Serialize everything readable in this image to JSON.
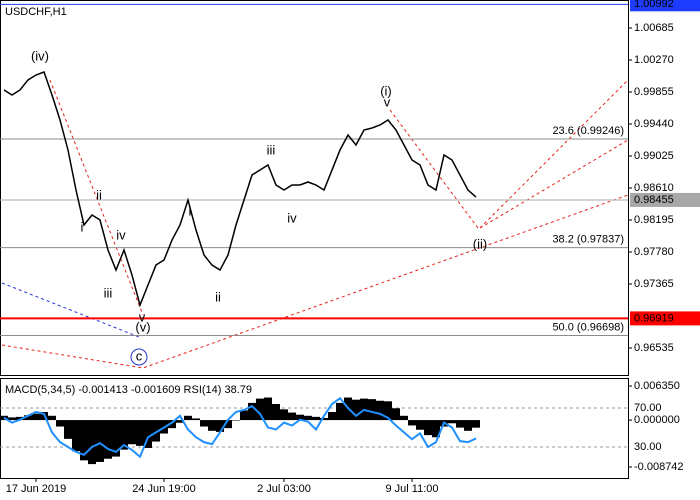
{
  "chart_data": [
    {
      "type": "line",
      "title": "USDCHF,H1",
      "categories": [
        null,
        null,
        null,
        null,
        "17 Jun 2019",
        null,
        null,
        null,
        null,
        null,
        null,
        null,
        null,
        null,
        null,
        null,
        null,
        null,
        null,
        null,
        "24 Jun 19:00",
        null,
        null,
        null,
        null,
        null,
        null,
        null,
        null,
        null,
        null,
        null,
        null,
        null,
        null,
        "2 Jul 03:00",
        null,
        null,
        null,
        null,
        null,
        null,
        null,
        null,
        null,
        null,
        null,
        null,
        null,
        null,
        null,
        "9 Jul 11:00",
        null,
        null,
        null,
        null,
        null,
        null,
        null,
        null
      ],
      "values": [
        0.99881,
        0.99816,
        0.99881,
        1.00011,
        1.00075,
        1.00114,
        0.99816,
        0.99492,
        0.99103,
        0.98584,
        0.9813,
        0.9826,
        0.98195,
        0.97806,
        0.97546,
        0.97806,
        0.97481,
        0.97092,
        0.97352,
        0.97611,
        0.97676,
        0.97935,
        0.9813,
        0.98454,
        0.98065,
        0.97741,
        0.97611,
        0.97546,
        0.97741,
        0.9813,
        0.98454,
        0.98778,
        0.98843,
        0.98908,
        0.98649,
        0.98584,
        0.98649,
        0.98649,
        0.98688,
        0.98649,
        0.98584,
        0.98843,
        0.99103,
        0.99297,
        0.99168,
        0.99362,
        0.99388,
        0.99427,
        0.99492,
        0.99362,
        0.99168,
        0.98973,
        0.98908,
        0.98649,
        0.98584,
        0.99038,
        0.98973,
        0.98778,
        0.98584,
        0.98493
      ],
      "color": "#000000",
      "ylim": [
        0.96185,
        1.01048
      ],
      "yticks": [
        1.00685,
        {
          "value": 1.0027,
          "label": "1.00270"
        },
        0.99855,
        {
          "value": 0.9944,
          "label": "0.99440"
        },
        0.99025,
        {
          "value": 0.9861,
          "label": "0.98610"
        },
        0.98195,
        {
          "value": 0.9778,
          "label": "0.97780"
        },
        0.97365,
        0.96535
      ],
      "price_markers": [
        {
          "value": 1.00992,
          "color": "#1e3cff"
        },
        {
          "value": 0.98455,
          "color": "#a8a8a8"
        },
        {
          "value": 0.96919,
          "color": "#ff0000"
        }
      ],
      "fib_levels": [
        {
          "label": "23.6 (0.99246)",
          "value": 0.99246
        },
        {
          "label": "38.2 (0.97837)",
          "value": 0.97837
        },
        {
          "label": "50.0 (0.96698)",
          "value": 0.96698
        }
      ],
      "wave_labels": [
        {
          "text": "(iv)",
          "color": "#e8221c"
        },
        {
          "text": "(v)",
          "color": "#e8221c"
        },
        {
          "text": "(i)",
          "color": "#e8221c"
        },
        {
          "text": "(ii)",
          "color": "#e8221c"
        },
        {
          "text": "c",
          "color": "#2233cc"
        },
        {
          "text": "ii",
          "color": "#555555"
        },
        {
          "text": "i",
          "color": "#555555"
        },
        {
          "text": "iii",
          "color": "#555555"
        },
        {
          "text": "iv",
          "color": "#555555"
        },
        {
          "text": "v",
          "color": "#555555"
        },
        {
          "text": "i",
          "color": "#555555"
        },
        {
          "text": "ii",
          "color": "#555555"
        },
        {
          "text": "iii",
          "color": "#555555"
        },
        {
          "text": "iv",
          "color": "#555555"
        },
        {
          "text": "v",
          "color": "#555555"
        }
      ]
    },
    {
      "type": "macd",
      "title": "MACD(5,34,5) -0.001413 -0.001609 RSI(14) 38.79",
      "ylim": [
        -0.01079,
        0.00784
      ],
      "yticks": [
        {
          "value": 0.00635,
          "label": "0.006350"
        },
        {
          "value": 0,
          "label": "0.000000"
        },
        -0.008742
      ],
      "y2lim": [
        -1.8,
        100.8
      ],
      "y2ticks": [
        {
          "value": 70,
          "label": "70.00"
        },
        {
          "value": 30,
          "label": "30.00"
        }
      ],
      "series": [
        {
          "color": "#000000",
          "values": [
            0.0008,
            0.0005,
            0.0006,
            0.0009,
            0.0012,
            0.0015,
            0.0008,
            -0.0012,
            -0.0035,
            -0.0058,
            -0.0075,
            -0.0082,
            -0.0078,
            -0.0072,
            -0.0068,
            -0.0055,
            -0.0045,
            -0.0048,
            -0.0052,
            -0.004,
            -0.0025,
            -0.0015,
            -0.0005,
            0.0008,
            0.0003,
            -0.0012,
            -0.002,
            -0.0022,
            -0.0015,
            0,
            0.0018,
            0.0032,
            0.004,
            0.0042,
            0.003,
            0.002,
            0.0014,
            0.001,
            0.0008,
            0.0006,
            0.0004,
            0.0015,
            0.0032,
            0.0042,
            0.0038,
            0.004,
            0.0039,
            0.0036,
            0.0035,
            0.0022,
            0.0008,
            -0.001,
            -0.0018,
            -0.0028,
            -0.0032,
            -0.0012,
            -0.0006,
            -0.0014,
            -0.002,
            -0.001413
          ]
        },
        {
          "color": "#1e90ff",
          "axis": "y2",
          "values": [
            60,
            55,
            58,
            62,
            66,
            64,
            45,
            35,
            30,
            25,
            22,
            30,
            34,
            28,
            25,
            32,
            27,
            20,
            40,
            45,
            50,
            55,
            62,
            48,
            40,
            35,
            33,
            45,
            58,
            66,
            68,
            72,
            64,
            50,
            48,
            55,
            52,
            58,
            56,
            48,
            62,
            74,
            80,
            70,
            62,
            68,
            66,
            64,
            60,
            52,
            45,
            38,
            44,
            30,
            35,
            55,
            50,
            36,
            35,
            38.79
          ]
        }
      ]
    }
  ]
}
